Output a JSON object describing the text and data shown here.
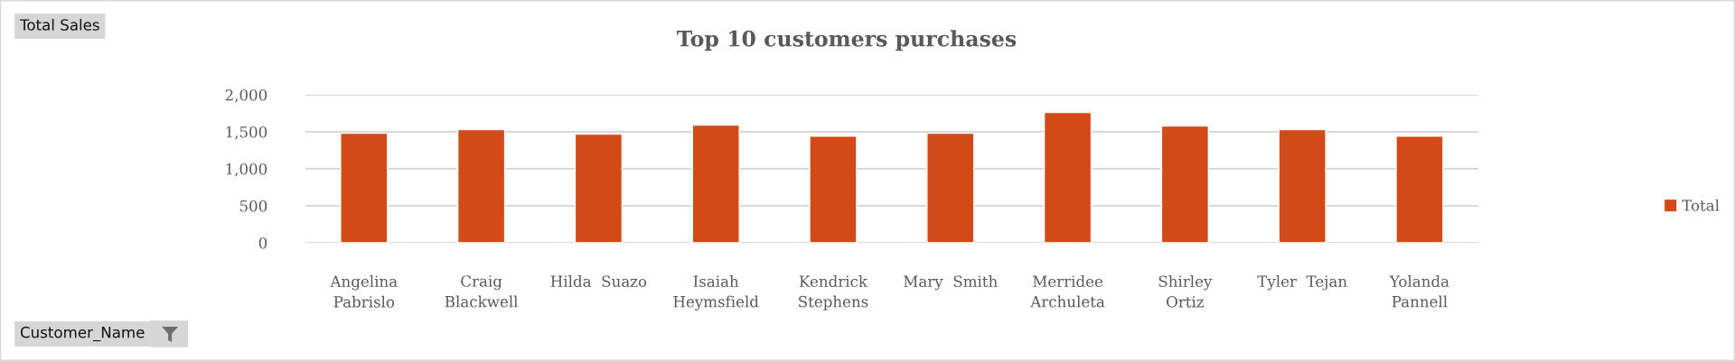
{
  "chart_data": {
    "type": "bar",
    "title": "Top 10 customers purchases",
    "categories": [
      "Angelina\nPabrislo",
      "Craig\nBlackwell",
      "Hilda  Suazo",
      "Isaiah\nHeymsfield",
      "Kendrick\nStephens",
      "Mary  Smith",
      "Merridee\nArchuleta",
      "Shirley\nOrtiz",
      "Tyler  Tejan",
      "Yolanda\nPannell"
    ],
    "series": [
      {
        "name": "Total",
        "color": "#d24a17",
        "values": [
          1480,
          1530,
          1470,
          1590,
          1440,
          1480,
          1760,
          1580,
          1530,
          1440
        ]
      }
    ],
    "ylim": [
      0,
      2000
    ],
    "yticks": [
      0,
      500,
      {
        "value": 1000,
        "label": "1,000"
      },
      {
        "value": 1500,
        "label": "1,500"
      },
      {
        "value": 2000,
        "label": "2,000"
      }
    ],
    "grid": "y",
    "legend": "right",
    "annotations": [
      "Total Sales",
      "Customer_Name"
    ]
  }
}
